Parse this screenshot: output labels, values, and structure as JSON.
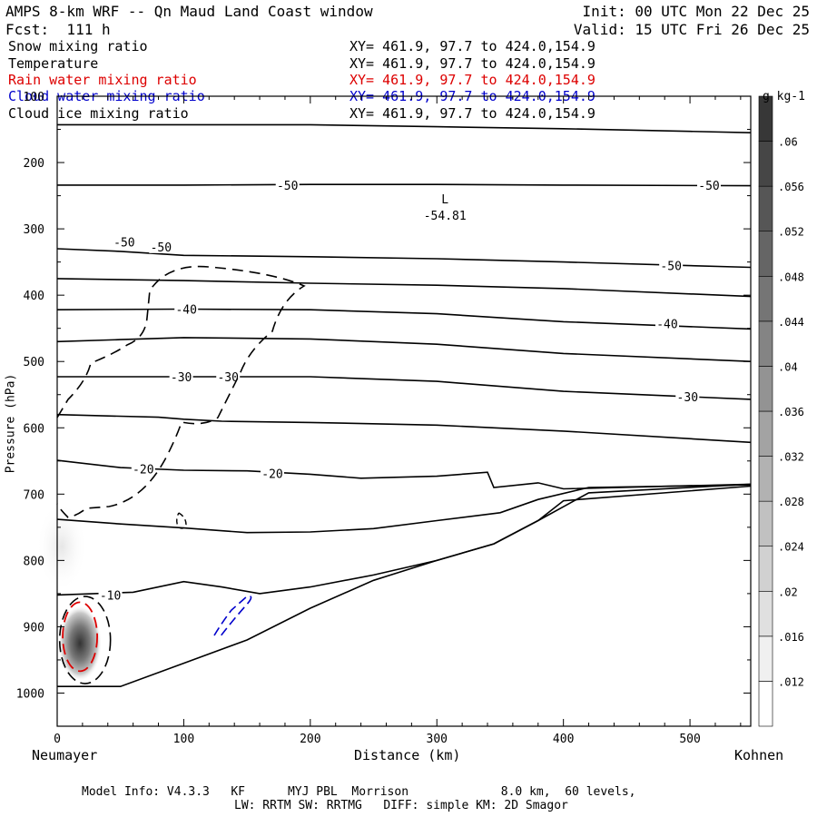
{
  "header": {
    "title": "AMPS 8-km WRF -- Qn Maud Land Coast window",
    "init": "Init: 00 UTC Mon 22 Dec 25",
    "fcst": "Fcst:  111 h",
    "valid": "Valid: 15 UTC Fri 26 Dec 25"
  },
  "fields": [
    {
      "name": "Snow mixing ratio",
      "xy": "XY= 461.9, 97.7 to 424.0,154.9",
      "color": "#000000"
    },
    {
      "name": "Temperature",
      "xy": "XY= 461.9, 97.7 to 424.0,154.9",
      "color": "#000000"
    },
    {
      "name": "Rain water mixing ratio",
      "xy": "XY= 461.9, 97.7 to 424.0,154.9",
      "color": "#dd0000"
    },
    {
      "name": "Cloud water mixing ratio",
      "xy": "XY= 461.9, 97.7 to 424.0,154.9",
      "color": "#0000cc"
    },
    {
      "name": "Cloud ice mixing ratio",
      "xy": "XY= 461.9, 97.7 to 424.0,154.9",
      "color": "#000000"
    }
  ],
  "footer": {
    "line1": "Model Info: V4.3.3   KF      MYJ PBL  Morrison             8.0 km,  60 levels,",
    "line2": "LW: RRTM SW: RRTMG   DIFF: simple KM: 2D Smagor"
  },
  "chart_data": {
    "type": "contour",
    "xlabel": "Distance (km)",
    "ylabel": "Pressure (hPa)",
    "x_left_label": "Neumayer",
    "x_right_label": "Kohnen",
    "xlim": [
      0,
      548
    ],
    "ylim": [
      1050,
      100
    ],
    "x_ticks": [
      0,
      100,
      200,
      300,
      400,
      500
    ],
    "y_ticks": [
      100,
      200,
      300,
      400,
      500,
      600,
      700,
      800,
      900,
      1000
    ],
    "colorbar": {
      "units": "g kg-1",
      "labels": [
        ".012",
        ".016",
        ".02",
        ".024",
        ".028",
        ".032",
        ".036",
        ".04",
        ".044",
        ".048",
        ".052",
        ".056",
        ".06"
      ],
      "range": [
        0.008,
        0.064
      ]
    },
    "low_marker": {
      "label": "L",
      "value": "-54.81",
      "x": 305,
      "p": 270
    },
    "temperature_isotherms": [
      {
        "level": -50,
        "labels": [
          {
            "text": "-50",
            "x": 182,
            "p": 234
          },
          {
            "text": "-50",
            "x": 515,
            "p": 234
          }
        ],
        "points": [
          [
            0,
            234
          ],
          [
            100,
            234
          ],
          [
            200,
            233
          ],
          [
            300,
            233
          ],
          [
            400,
            234
          ],
          [
            548,
            235
          ]
        ]
      },
      {
        "level": -50,
        "labels": [
          {
            "text": "-50",
            "x": 53,
            "p": 320
          },
          {
            "text": "-50",
            "x": 82,
            "p": 327
          },
          {
            "text": "-50",
            "x": 485,
            "p": 355
          }
        ],
        "points": [
          [
            0,
            330
          ],
          [
            50,
            334
          ],
          [
            100,
            340
          ],
          [
            200,
            342
          ],
          [
            300,
            345
          ],
          [
            400,
            350
          ],
          [
            548,
            358
          ]
        ]
      },
      {
        "level": -45,
        "labels": [],
        "points": [
          [
            0,
            143
          ],
          [
            100,
            143
          ],
          [
            200,
            143
          ],
          [
            300,
            146
          ],
          [
            400,
            149
          ],
          [
            500,
            153
          ],
          [
            548,
            155
          ]
        ]
      },
      {
        "level": -45,
        "labels": [],
        "points": [
          [
            0,
            375
          ],
          [
            100,
            378
          ],
          [
            200,
            382
          ],
          [
            300,
            385
          ],
          [
            400,
            390
          ],
          [
            548,
            402
          ]
        ]
      },
      {
        "level": -40,
        "labels": [
          {
            "text": "-40",
            "x": 102,
            "p": 421
          },
          {
            "text": "-40",
            "x": 482,
            "p": 443
          }
        ],
        "points": [
          [
            0,
            422
          ],
          [
            100,
            421
          ],
          [
            200,
            422
          ],
          [
            300,
            428
          ],
          [
            400,
            440
          ],
          [
            548,
            451
          ]
        ]
      },
      {
        "level": -35,
        "labels": [],
        "points": [
          [
            0,
            470
          ],
          [
            50,
            467
          ],
          [
            100,
            464
          ],
          [
            200,
            466
          ],
          [
            300,
            474
          ],
          [
            400,
            488
          ],
          [
            548,
            500
          ]
        ]
      },
      {
        "level": -30,
        "labels": [
          {
            "text": "-30",
            "x": 98,
            "p": 523
          },
          {
            "text": "-30",
            "x": 135,
            "p": 523
          },
          {
            "text": "-30",
            "x": 498,
            "p": 553
          }
        ],
        "points": [
          [
            0,
            523
          ],
          [
            100,
            523
          ],
          [
            200,
            523
          ],
          [
            300,
            530
          ],
          [
            400,
            545
          ],
          [
            548,
            557
          ]
        ]
      },
      {
        "level": -25,
        "labels": [],
        "points": [
          [
            0,
            580
          ],
          [
            80,
            584
          ],
          [
            100,
            587
          ],
          [
            130,
            590
          ],
          [
            200,
            592
          ],
          [
            300,
            596
          ],
          [
            400,
            605
          ],
          [
            548,
            622
          ]
        ]
      },
      {
        "level": -20,
        "labels": [
          {
            "text": "-20",
            "x": 68,
            "p": 662
          },
          {
            "text": "-20",
            "x": 170,
            "p": 669
          }
        ],
        "points": [
          [
            0,
            649
          ],
          [
            50,
            660
          ],
          [
            100,
            664
          ],
          [
            150,
            665
          ],
          [
            200,
            670
          ],
          [
            240,
            676
          ],
          [
            300,
            673
          ],
          [
            340,
            667
          ],
          [
            345,
            690
          ],
          [
            380,
            683
          ],
          [
            400,
            692
          ],
          [
            548,
            685
          ]
        ]
      },
      {
        "level": -15,
        "labels": [],
        "points": [
          [
            0,
            738
          ],
          [
            50,
            745
          ],
          [
            100,
            751
          ],
          [
            150,
            758
          ],
          [
            200,
            757
          ],
          [
            250,
            752
          ],
          [
            300,
            740
          ],
          [
            350,
            728
          ],
          [
            380,
            708
          ],
          [
            420,
            690
          ],
          [
            548,
            686
          ]
        ]
      },
      {
        "level": -10,
        "labels": [
          {
            "text": "-10",
            "x": 42,
            "p": 852
          }
        ],
        "points": [
          [
            0,
            852
          ],
          [
            60,
            848
          ],
          [
            100,
            832
          ],
          [
            130,
            840
          ],
          [
            160,
            850
          ],
          [
            200,
            840
          ],
          [
            250,
            822
          ],
          [
            300,
            800
          ],
          [
            345,
            775
          ],
          [
            380,
            740
          ],
          [
            400,
            710
          ],
          [
            548,
            688
          ]
        ]
      }
    ],
    "terrain": [
      [
        0,
        990
      ],
      [
        50,
        990
      ],
      [
        100,
        955
      ],
      [
        150,
        920
      ],
      [
        200,
        872
      ],
      [
        250,
        830
      ],
      [
        300,
        800
      ],
      [
        345,
        775
      ],
      [
        380,
        740
      ],
      [
        420,
        698
      ],
      [
        548,
        685
      ]
    ]
  }
}
